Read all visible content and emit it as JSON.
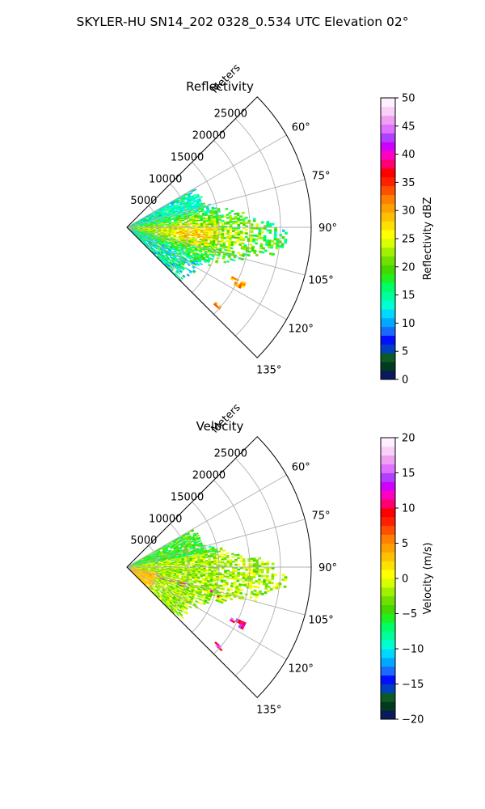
{
  "title": "SKYLER-HU  SN14_202  0328_0.534 UTC Elevation 02°",
  "chart_data": [
    {
      "type": "heatmap",
      "subtype": "polar-sector",
      "title": "Reflectivity",
      "radial_label": "Meters",
      "range_ticks": [
        "5000",
        "10000",
        "15000",
        "20000",
        "25000"
      ],
      "range_tick_values": [
        5000,
        10000,
        15000,
        20000,
        25000
      ],
      "rmax": 30000,
      "theta_range_deg": [
        45,
        135
      ],
      "theta_ticks": [
        "60°",
        "75°",
        "90°",
        "105°",
        "120°",
        "135°"
      ],
      "theta_tick_values": [
        60,
        75,
        90,
        105,
        120,
        135
      ],
      "grid": true,
      "colorbar": {
        "label": "Reflectivity dBZ",
        "range": [
          0,
          50
        ],
        "ticks": [
          "0",
          "5",
          "10",
          "15",
          "20",
          "25",
          "30",
          "35",
          "40",
          "45",
          "50"
        ],
        "tick_values": [
          0,
          5,
          10,
          15,
          20,
          25,
          30,
          35,
          40,
          45,
          50
        ],
        "colors": [
          "#0a1a5a",
          "#003a1f",
          "#0d5a24",
          "#0040c0",
          "#0010ff",
          "#1a6aff",
          "#00a8ff",
          "#00d8ff",
          "#00ffd0",
          "#00ff9a",
          "#00ff66",
          "#20f020",
          "#44d800",
          "#70e000",
          "#a0f000",
          "#d8ff00",
          "#ffff00",
          "#ffe000",
          "#ffc000",
          "#ffa000",
          "#ff8000",
          "#ff5000",
          "#ff2000",
          "#ff0000",
          "#ff0070",
          "#ff00c0",
          "#d000ff",
          "#b040ff",
          "#e070ff",
          "#f0a0f0",
          "#f8d0f8",
          "#fff0ff"
        ]
      },
      "data_description": "Echo field spans roughly 0–25 km between bearings 60° and 135°; strongest values about 25–33 dBZ along the 90°–100° band, weaker 10–22 dBZ elsewhere."
    },
    {
      "type": "heatmap",
      "subtype": "polar-sector",
      "title": "Velocity",
      "radial_label": "Meters",
      "range_ticks": [
        "5000",
        "10000",
        "15000",
        "20000",
        "25000"
      ],
      "range_tick_values": [
        5000,
        10000,
        15000,
        20000,
        25000
      ],
      "rmax": 30000,
      "theta_range_deg": [
        45,
        135
      ],
      "theta_ticks": [
        "60°",
        "75°",
        "90°",
        "105°",
        "120°",
        "135°"
      ],
      "theta_tick_values": [
        60,
        75,
        90,
        105,
        120,
        135
      ],
      "grid": true,
      "colorbar": {
        "label": "Velocity (m/s)",
        "range": [
          -20,
          20
        ],
        "ticks": [
          "−20",
          "−15",
          "−10",
          "−5",
          "0",
          "5",
          "10",
          "15",
          "20"
        ],
        "tick_values": [
          -20,
          -15,
          -10,
          -5,
          0,
          5,
          10,
          15,
          20
        ],
        "colors": [
          "#0a1a5a",
          "#003a1f",
          "#0d5a24",
          "#0040c0",
          "#0010ff",
          "#1a6aff",
          "#00a8ff",
          "#00d8ff",
          "#00ffd0",
          "#00ff9a",
          "#00ff66",
          "#20f020",
          "#44d800",
          "#70e000",
          "#a0f000",
          "#d8ff00",
          "#ffff00",
          "#ffe000",
          "#ffc000",
          "#ffa000",
          "#ff8000",
          "#ff5000",
          "#ff2000",
          "#ff0000",
          "#ff0070",
          "#ff00c0",
          "#d000ff",
          "#b040ff",
          "#e070ff",
          "#f0a0f0",
          "#f8d0f8",
          "#fff0ff"
        ]
      },
      "data_description": "Mostly near-zero to slightly negative velocities (−5 to +3 m/s) across the echo field, with small pockets of +10 to +15 m/s near bearings 105°–120°."
    }
  ]
}
